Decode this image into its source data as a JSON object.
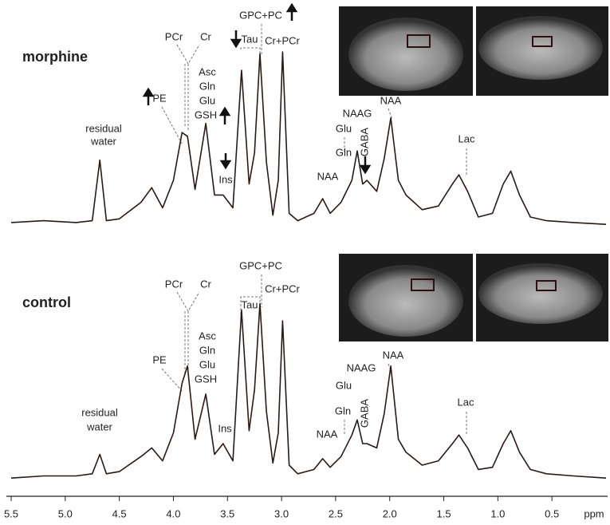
{
  "chart_data": {
    "type": "line",
    "xlabel": "ppm",
    "xlim": [
      5.5,
      0
    ],
    "xticks": [
      5.5,
      {
        "value": 5,
        "label": "5.0"
      },
      4.5,
      {
        "value": 4,
        "label": "4.0"
      },
      3.5,
      {
        "value": 3,
        "label": "3.0"
      },
      2.5,
      {
        "value": 2,
        "label": "2.0"
      },
      1.5,
      {
        "value": 1,
        "label": "1.0"
      },
      0.5
    ],
    "x": [
      5.5,
      5.2,
      4.9,
      4.75,
      4.68,
      4.62,
      4.5,
      4.3,
      4.2,
      4.1,
      4.0,
      3.92,
      3.87,
      3.8,
      3.7,
      3.62,
      3.54,
      3.45,
      3.37,
      3.3,
      3.25,
      3.2,
      3.14,
      3.08,
      3.03,
      2.99,
      2.93,
      2.85,
      2.7,
      2.62,
      2.55,
      2.45,
      2.35,
      2.3,
      2.25,
      2.21,
      2.12,
      2.05,
      1.99,
      1.92,
      1.85,
      1.7,
      1.55,
      1.42,
      1.36,
      1.28,
      1.18,
      1.05,
      0.95,
      0.88,
      0.8,
      0.7,
      0.55,
      0.3,
      0.0
    ],
    "series": [
      {
        "name": "morphine",
        "color": "#2a1a14",
        "values": [
          7,
          8,
          7,
          8,
          41,
          8,
          9,
          18,
          26,
          15,
          30,
          56,
          54,
          25,
          61,
          22,
          22,
          15,
          90,
          28,
          45,
          99,
          40,
          11,
          30,
          100,
          12,
          8,
          12,
          20,
          12,
          18,
          30,
          46,
          28,
          30,
          24,
          42,
          64,
          30,
          22,
          14,
          16,
          28,
          33,
          24,
          10,
          12,
          28,
          35,
          22,
          10,
          8,
          7,
          6
        ],
        "annotations": [
          "residual",
          "water",
          "PE",
          "PCr",
          "Cr",
          "Asc",
          "Gln",
          "Glu",
          "GSH",
          "Ins",
          "Tau",
          "GPC+PC",
          "Cr+PCr",
          "NAA",
          "Gln",
          "Glu",
          "GABA",
          "NAAG",
          "NAA",
          "Lac"
        ]
      },
      {
        "name": "control",
        "color": "#2a1a14",
        "values": [
          4,
          5,
          5,
          6,
          15,
          6,
          7,
          14,
          18,
          12,
          25,
          48,
          56,
          22,
          43,
          15,
          20,
          12,
          82,
          26,
          45,
          85,
          35,
          11,
          25,
          77,
          10,
          6,
          8,
          13,
          9,
          14,
          24,
          31,
          20,
          20,
          18,
          34,
          56,
          22,
          16,
          10,
          12,
          20,
          24,
          18,
          8,
          9,
          20,
          26,
          16,
          8,
          6,
          5,
          4
        ],
        "annotations": [
          "residual",
          "water",
          "PE",
          "PCr",
          "Cr",
          "Asc",
          "Gln",
          "Glu",
          "GSH",
          "Ins",
          "Tau",
          "GPC+PC",
          "Cr+PCr",
          "NAA",
          "Gln",
          "Glu",
          "GABA",
          "NAAG",
          "NAA",
          "Lac"
        ]
      }
    ]
  }
}
